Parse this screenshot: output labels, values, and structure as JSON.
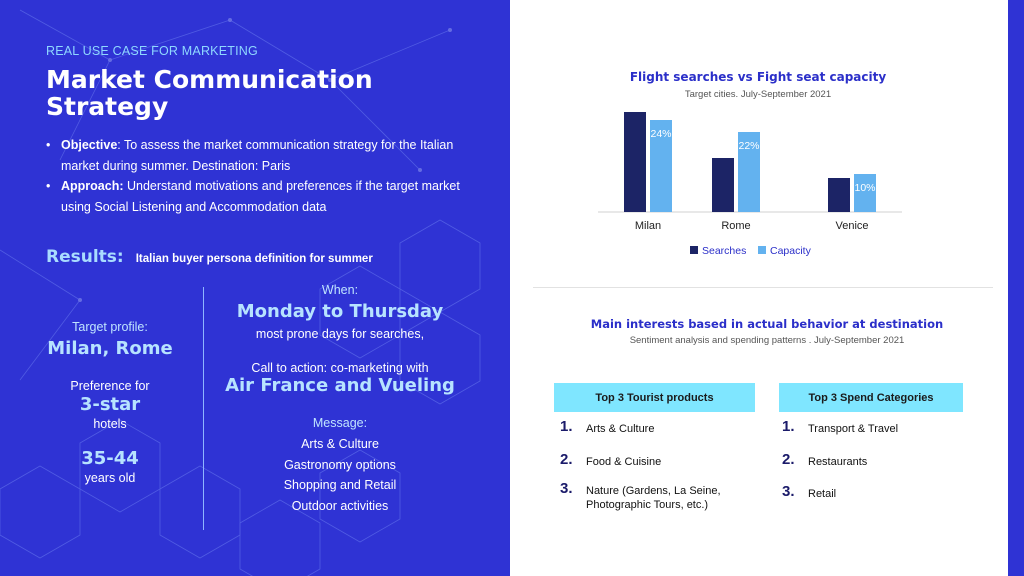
{
  "left": {
    "kicker": "REAL USE CASE FOR MARKETING",
    "title": "Market Communication Strategy",
    "bullets": [
      {
        "label": "Objective",
        "text": ": To assess the market communication strategy for the Italian market during summer. Destination: Paris"
      },
      {
        "label": "Approach:",
        "text": " Understand motivations and preferences if the target market using Social Listening and Accommodation data"
      }
    ],
    "results_label": "Results:",
    "results_text": "Italian buyer persona definition for summer",
    "target": {
      "profile_label": "Target profile:",
      "profile_value": "Milan, Rome",
      "preference_label": "Preference for",
      "preference_value": "3-star",
      "preference_suffix": "hotels",
      "age_value": "35-44",
      "age_suffix": "years old"
    },
    "when": {
      "label": "When:",
      "value": "Monday to Thursday",
      "note": "most prone days for searches,",
      "cta_label": "Call to action: co-marketing with",
      "cta_value": "Air France and Vueling",
      "message_label": "Message:",
      "messages": [
        "Arts & Culture",
        "Gastronomy options",
        "Shopping and Retail",
        "Outdoor activities"
      ]
    }
  },
  "chart_data": {
    "type": "bar",
    "title": "Flight searches vs Fight seat capacity",
    "subtitle": "Target cities. July-September 2021",
    "categories": [
      "Milan",
      "Rome",
      "Venice"
    ],
    "series": [
      {
        "name": "Searches",
        "color": "#1c2466",
        "values": [
          100,
          54,
          34
        ]
      },
      {
        "name": "Capacity",
        "color": "#63b2ef",
        "values": [
          92,
          80,
          38
        ]
      }
    ],
    "data_labels": [
      "24%",
      "22%",
      "10%"
    ],
    "ylim": [
      0,
      100
    ],
    "legend": "bottom-center"
  },
  "interests": {
    "title": "Main interests based in actual behavior at destination",
    "subtitle": "Sentiment analysis and spending patterns . July-September 2021",
    "tourist": {
      "header": "Top 3 Tourist products",
      "items": [
        {
          "num": "1.",
          "text": "Arts & Culture"
        },
        {
          "num": "2.",
          "text": "Food & Cuisine"
        },
        {
          "num": "3.",
          "text": "Nature (Gardens, La Seine, Photographic Tours, etc.)"
        }
      ]
    },
    "spend": {
      "header": "Top 3 Spend Categories",
      "items": [
        {
          "num": "1.",
          "text": "Transport & Travel"
        },
        {
          "num": "2.",
          "text": "Restaurants"
        },
        {
          "num": "3.",
          "text": "Retail"
        }
      ]
    },
    "header_color": "#7fe6ff"
  }
}
